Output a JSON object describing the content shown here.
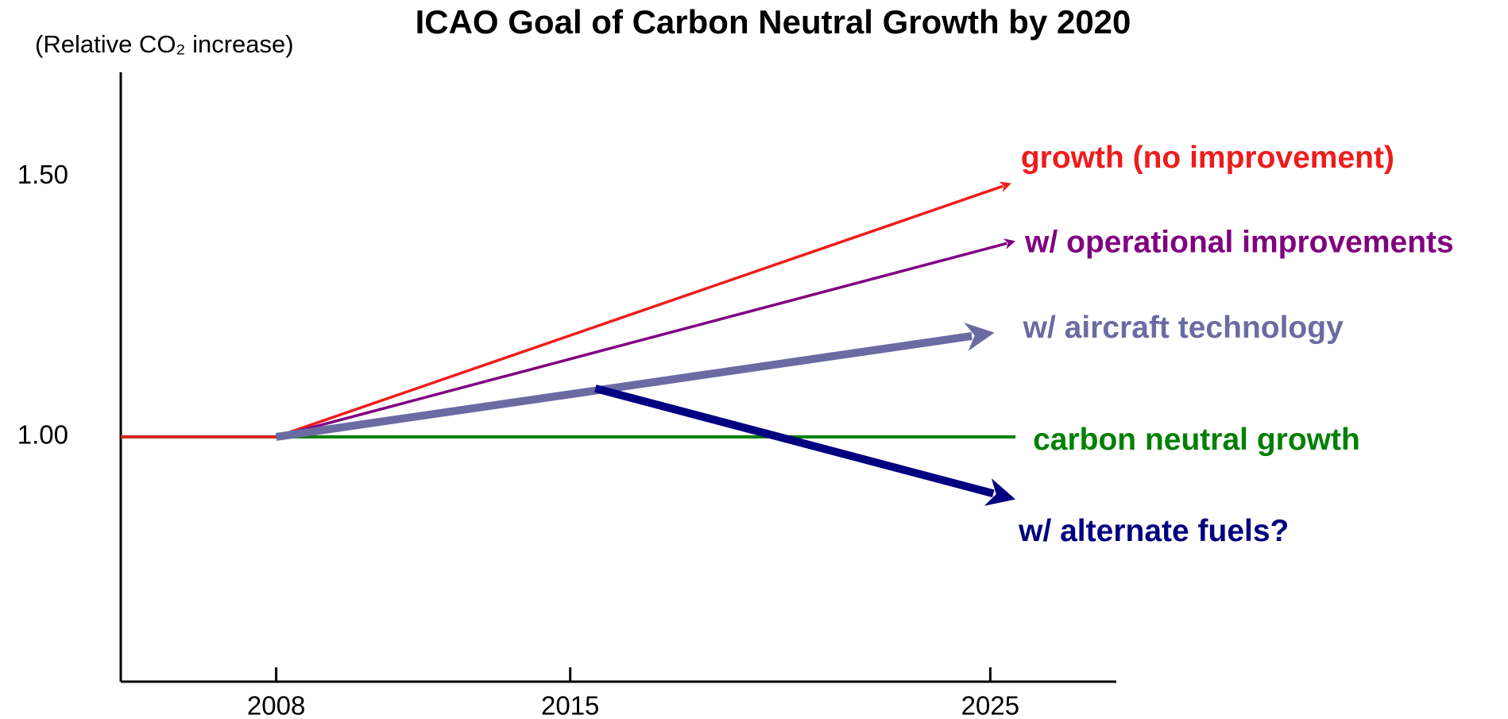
{
  "chart_data": {
    "type": "line",
    "title": "ICAO Goal of Carbon Neutral Growth by 2020",
    "y_label": "(Relative CO₂ increase)",
    "xlim": [
      2004.3,
      2028
    ],
    "ylim": [
      0.53,
      1.7
    ],
    "xticks": [
      2008,
      2015,
      2025
    ],
    "yticks": [
      {
        "value": 1.0,
        "label": "1.00"
      },
      {
        "value": 1.5,
        "label": "1.50"
      }
    ],
    "series": [
      {
        "name": "carbon neutral growth",
        "color": "#008000",
        "x": [
          2004.3,
          2025.6
        ],
        "values": [
          1.0,
          1.0
        ]
      },
      {
        "name": "growth (no improvement)",
        "color": "#ee1c1c",
        "x": [
          2004.3,
          2008,
          2025.5
        ],
        "values": [
          1.0,
          1.0,
          1.487
        ]
      },
      {
        "name": "w/ operational improvements",
        "color": "#800080",
        "x": [
          2008,
          2025.6
        ],
        "values": [
          1.0,
          1.376
        ]
      },
      {
        "name": "w/ aircraft technology",
        "color": "#6b6ba3",
        "x": [
          2008,
          2025.1
        ],
        "values": [
          1.0,
          1.2
        ]
      },
      {
        "name": "w/ alternate fuels?",
        "color": "#000080",
        "x": [
          2015.6,
          2025.6
        ],
        "values": [
          1.093,
          0.88
        ]
      }
    ]
  }
}
